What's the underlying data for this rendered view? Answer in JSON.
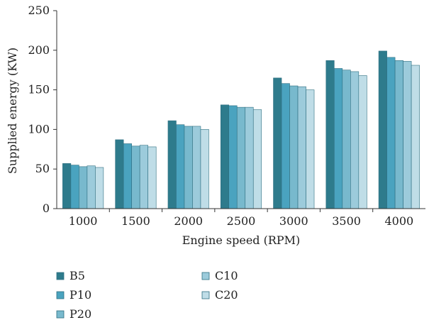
{
  "chart_data": {
    "type": "bar",
    "title": "",
    "xlabel": "Engine speed (RPM)",
    "ylabel": "Supplied energy (KW)",
    "ylim": [
      0,
      250
    ],
    "yticks": [
      "0",
      "50",
      "100",
      "150",
      "200",
      "250"
    ],
    "grid": false,
    "legend_position": "bottom-left",
    "categories": [
      "1000",
      "1500",
      "2000",
      "2500",
      "3000",
      "3500",
      "4000"
    ],
    "series": [
      {
        "name": "B5",
        "color": "#2e7b8c",
        "values": [
          57,
          87,
          111,
          131,
          165,
          187,
          199
        ]
      },
      {
        "name": "P10",
        "color": "#4aa3bf",
        "values": [
          55,
          82,
          106,
          130,
          158,
          177,
          191
        ]
      },
      {
        "name": "P20",
        "color": "#78b9cd",
        "values": [
          53,
          79,
          104,
          128,
          155,
          175,
          187
        ]
      },
      {
        "name": "C10",
        "color": "#9ccbdb",
        "values": [
          54,
          80,
          104,
          128,
          154,
          173,
          186
        ]
      },
      {
        "name": "C20",
        "color": "#bfdde7",
        "values": [
          52,
          78,
          100,
          125,
          150,
          168,
          181
        ]
      }
    ]
  }
}
